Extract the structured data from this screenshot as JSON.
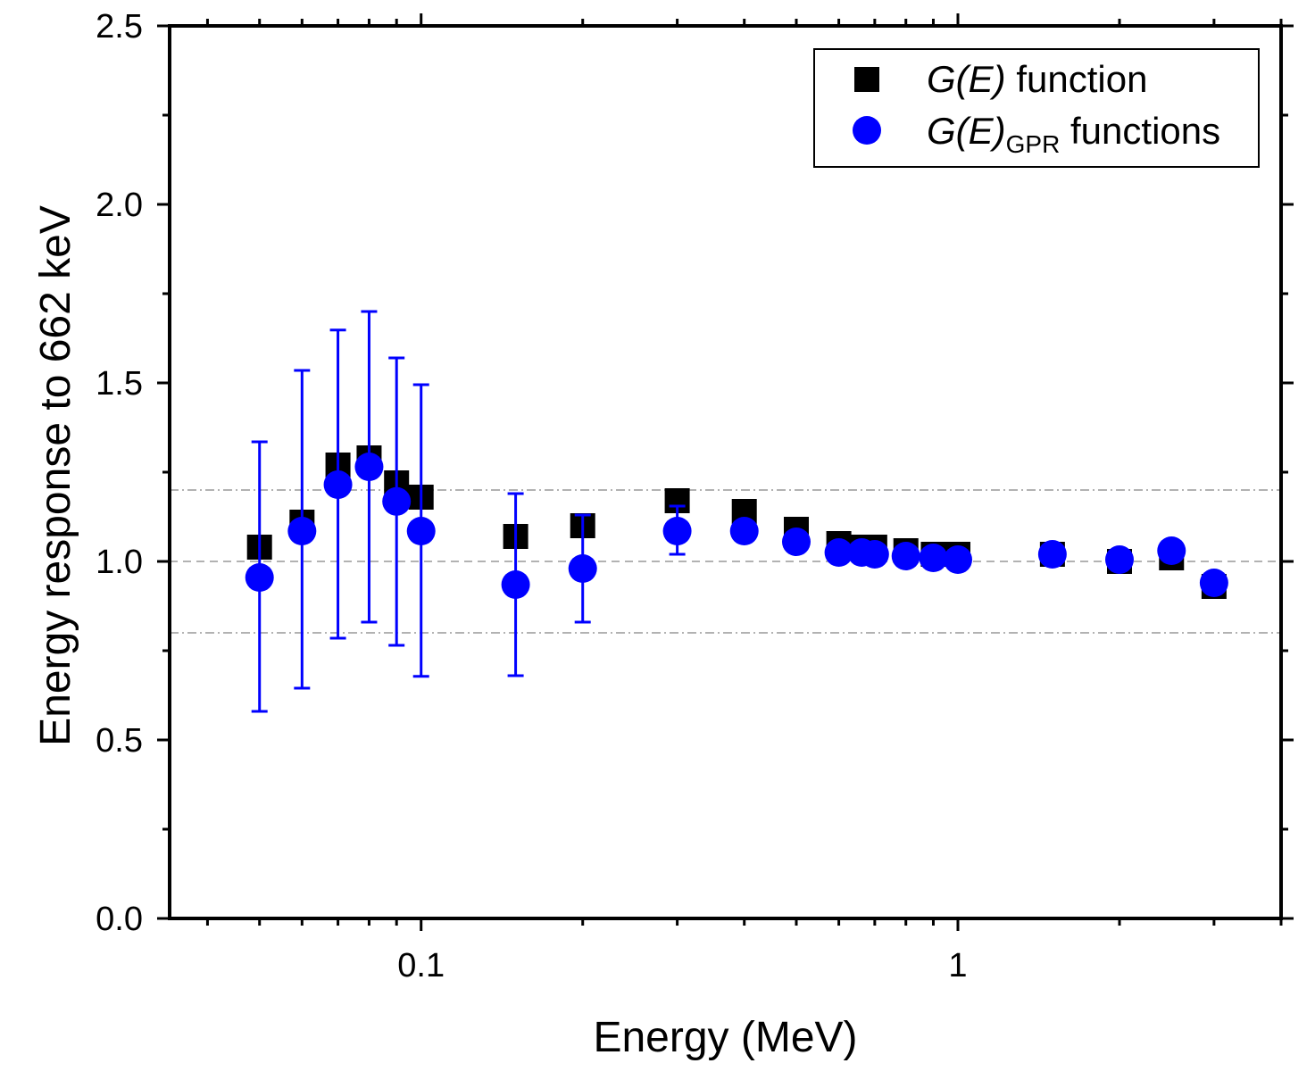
{
  "chart_data": {
    "type": "scatter",
    "xscale": "log",
    "xlabel": "Energy (MeV)",
    "ylabel": "Energy response to 662 keV",
    "xlim": [
      0.034,
      4.0
    ],
    "ylim": [
      0.0,
      2.5
    ],
    "x_tick_labels": [
      {
        "value": 0.1,
        "label": "0.1"
      },
      {
        "value": 1,
        "label": "1"
      }
    ],
    "y_tick_labels": [
      {
        "value": 0.0,
        "label": "0.0"
      },
      {
        "value": 0.5,
        "label": "0.5"
      },
      {
        "value": 1.0,
        "label": "1.0"
      },
      {
        "value": 1.5,
        "label": "1.5"
      },
      {
        "value": 2.0,
        "label": "2.0"
      },
      {
        "value": 2.5,
        "label": "2.5"
      }
    ],
    "reference_lines": [
      {
        "y": 1.2,
        "style": "dash-dot"
      },
      {
        "y": 1.0,
        "style": "dashed"
      },
      {
        "y": 0.8,
        "style": "dash-dot"
      }
    ],
    "legend": {
      "position": "top-right",
      "entries": [
        {
          "series": "G(E) function",
          "italic": "G(E)",
          "sub": "",
          "rest": " function"
        },
        {
          "series": "G(E)GPR functions",
          "italic": "G(E)",
          "sub": "GPR",
          "rest": " functions"
        }
      ]
    },
    "series": [
      {
        "name": "G(E) function",
        "marker": "square",
        "color": "#000000",
        "points": [
          {
            "x": 0.05,
            "y": 1.04
          },
          {
            "x": 0.06,
            "y": 1.11
          },
          {
            "x": 0.07,
            "y": 1.27
          },
          {
            "x": 0.08,
            "y": 1.29
          },
          {
            "x": 0.09,
            "y": 1.22
          },
          {
            "x": 0.1,
            "y": 1.18
          },
          {
            "x": 0.15,
            "y": 1.07
          },
          {
            "x": 0.2,
            "y": 1.1
          },
          {
            "x": 0.3,
            "y": 1.17
          },
          {
            "x": 0.4,
            "y": 1.14
          },
          {
            "x": 0.5,
            "y": 1.09
          },
          {
            "x": 0.6,
            "y": 1.05
          },
          {
            "x": 0.662,
            "y": 1.04
          },
          {
            "x": 0.7,
            "y": 1.04
          },
          {
            "x": 0.8,
            "y": 1.03
          },
          {
            "x": 0.9,
            "y": 1.02
          },
          {
            "x": 1.0,
            "y": 1.02
          },
          {
            "x": 1.5,
            "y": 1.02
          },
          {
            "x": 2.0,
            "y": 1.0
          },
          {
            "x": 2.5,
            "y": 1.01
          },
          {
            "x": 3.0,
            "y": 0.93
          }
        ]
      },
      {
        "name": "G(E)GPR functions",
        "marker": "circle",
        "color": "#0000ff",
        "points": [
          {
            "x": 0.05,
            "y": 0.955,
            "err_low": 0.58,
            "err_high": 1.335
          },
          {
            "x": 0.06,
            "y": 1.085,
            "err_low": 0.645,
            "err_high": 1.535
          },
          {
            "x": 0.07,
            "y": 1.215,
            "err_low": 0.785,
            "err_high": 1.648
          },
          {
            "x": 0.08,
            "y": 1.265,
            "err_low": 0.83,
            "err_high": 1.7
          },
          {
            "x": 0.09,
            "y": 1.168,
            "err_low": 0.765,
            "err_high": 1.57
          },
          {
            "x": 0.1,
            "y": 1.085,
            "err_low": 0.678,
            "err_high": 1.495
          },
          {
            "x": 0.15,
            "y": 0.935,
            "err_low": 0.68,
            "err_high": 1.19
          },
          {
            "x": 0.2,
            "y": 0.98,
            "err_low": 0.83,
            "err_high": 1.13
          },
          {
            "x": 0.3,
            "y": 1.085,
            "err_low": 1.02,
            "err_high": 1.155
          },
          {
            "x": 0.4,
            "y": 1.085,
            "err_low": 1.06,
            "err_high": 1.11
          },
          {
            "x": 0.5,
            "y": 1.055
          },
          {
            "x": 0.6,
            "y": 1.025
          },
          {
            "x": 0.662,
            "y": 1.025
          },
          {
            "x": 0.7,
            "y": 1.02
          },
          {
            "x": 0.8,
            "y": 1.015
          },
          {
            "x": 0.9,
            "y": 1.01
          },
          {
            "x": 1.0,
            "y": 1.005
          },
          {
            "x": 1.5,
            "y": 1.02
          },
          {
            "x": 2.0,
            "y": 1.005
          },
          {
            "x": 2.5,
            "y": 1.03
          },
          {
            "x": 3.0,
            "y": 0.94
          }
        ]
      }
    ]
  }
}
